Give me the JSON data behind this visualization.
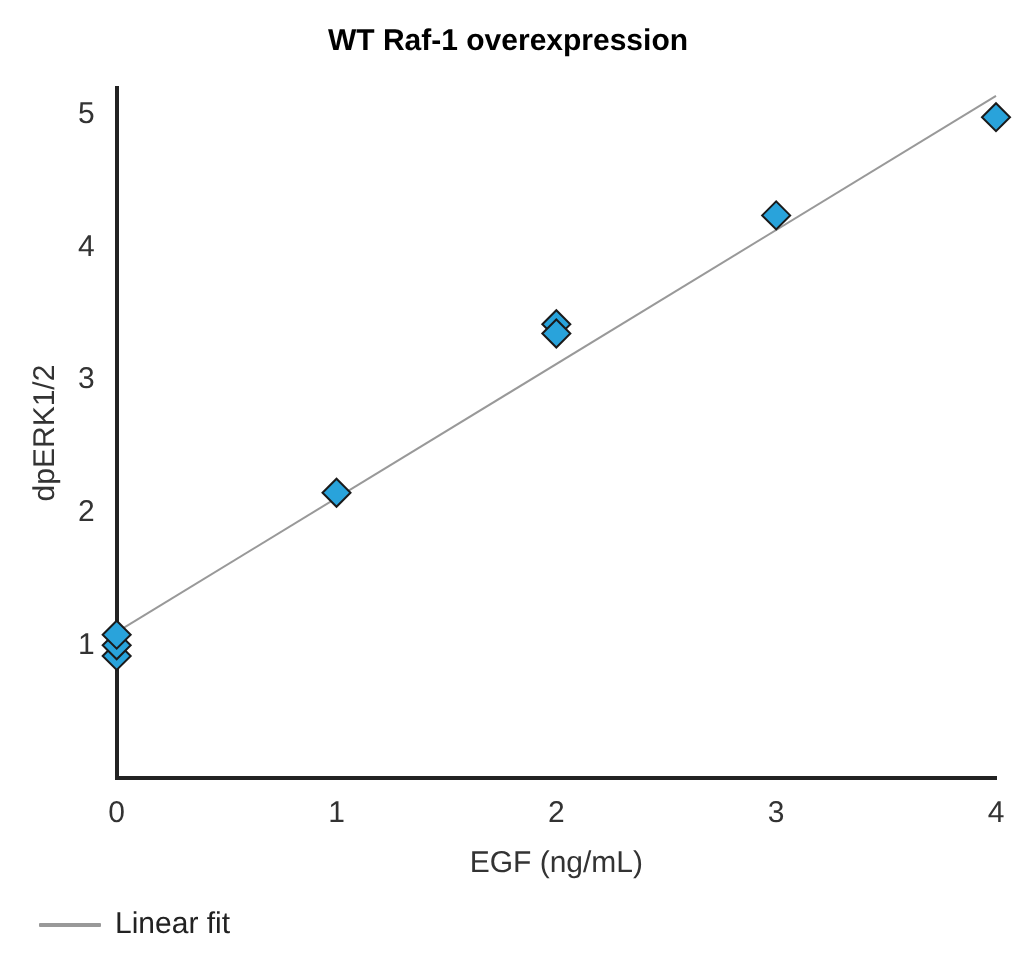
{
  "chart_data": {
    "type": "scatter",
    "title": "WT Raf-1 overexpression",
    "xlabel": "EGF (ng/mL)",
    "ylabel": "dpERK1/2",
    "xlim": [
      0,
      4
    ],
    "xticks": [
      0,
      1,
      2,
      3,
      4
    ],
    "ylim": [
      0,
      5.2
    ],
    "yticks": [
      1,
      2,
      3,
      4,
      5
    ],
    "grid": false,
    "legend": "bottom left",
    "marker": "diamond",
    "series": [
      {
        "color": "#29a3db",
        "x": [
          0,
          0,
          0,
          1,
          2,
          2,
          3,
          4
        ],
        "values": [
          0.92,
          1.0,
          1.08,
          2.15,
          3.42,
          3.35,
          4.24,
          4.98
        ]
      },
      {
        "type": "line",
        "name": "Linear fit",
        "color": "#999999",
        "x": [
          0,
          4
        ],
        "values": [
          1.1,
          5.14
        ],
        "marker": "none",
        "line_style": "solid"
      }
    ]
  }
}
